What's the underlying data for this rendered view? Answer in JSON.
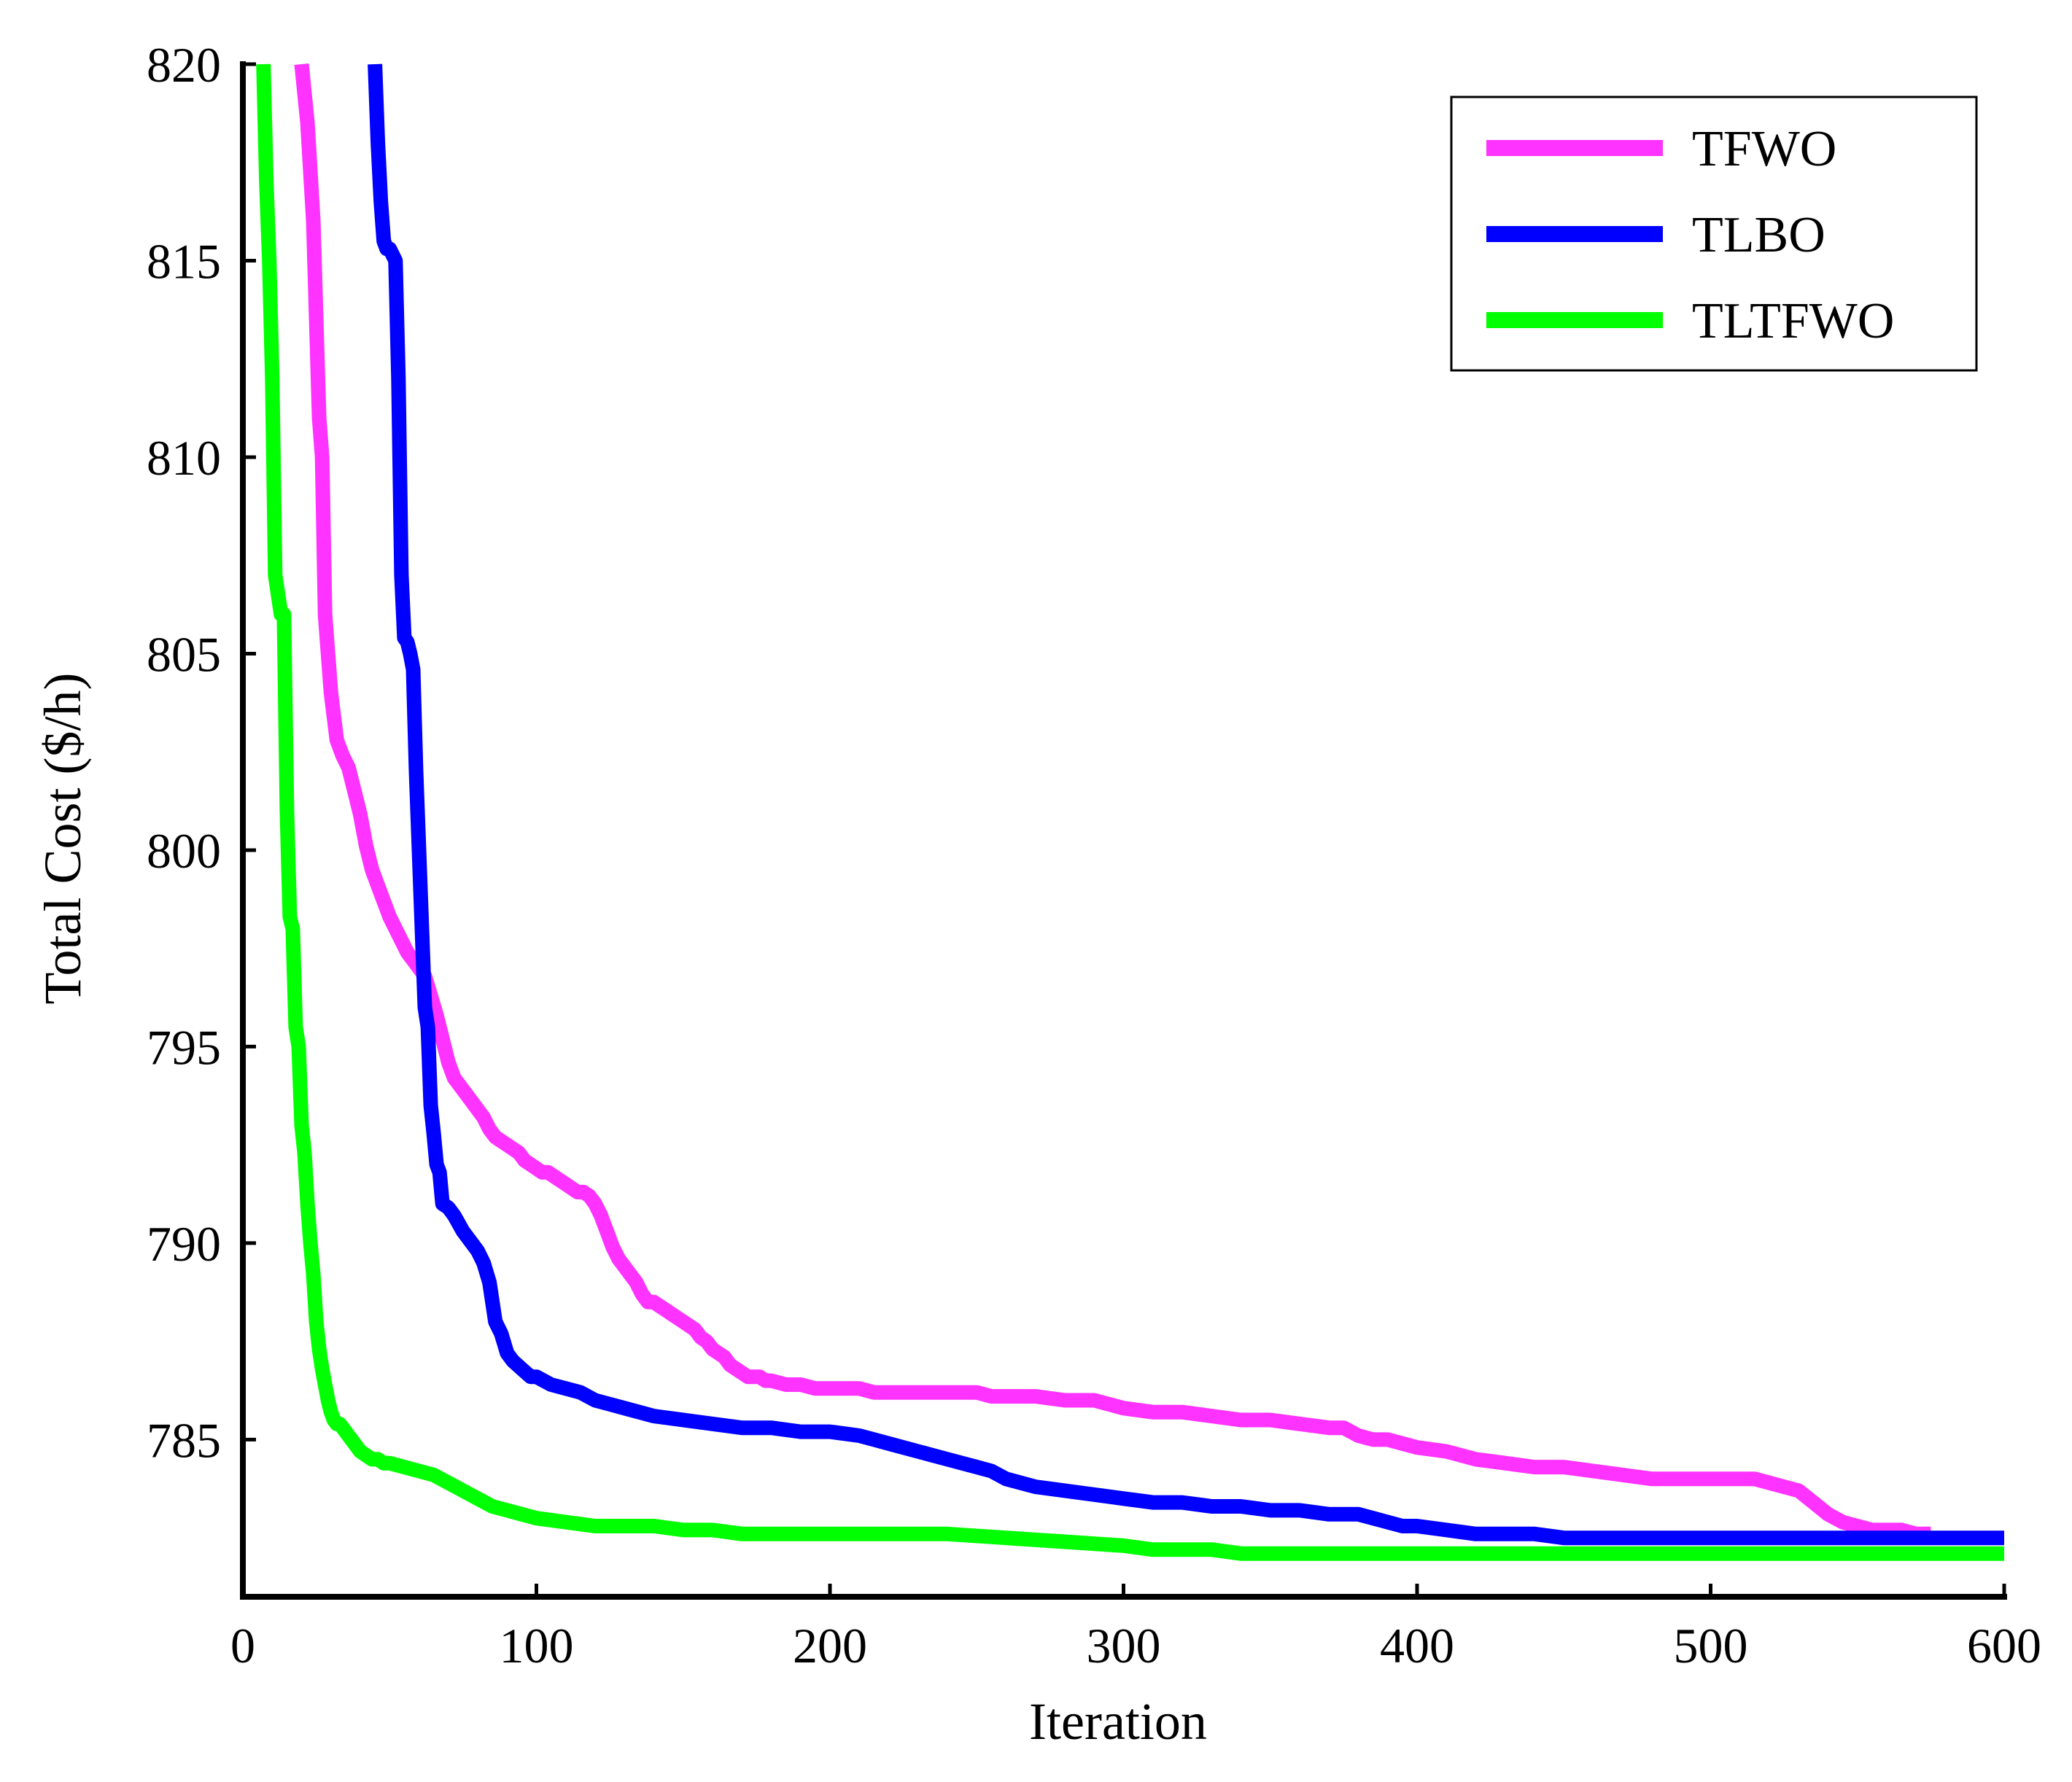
{
  "chart_data": {
    "type": "line",
    "title": "",
    "xlabel": "Iteration",
    "ylabel": "Total Cost ($/h)",
    "xlim": [
      0,
      600
    ],
    "ylim": [
      781,
      820
    ],
    "xticks": [
      "0",
      "100",
      "200",
      "300",
      "400",
      "500",
      "600"
    ],
    "yticks": [
      "785",
      "790",
      "795",
      "800",
      "805",
      "810",
      "815",
      "820"
    ],
    "grid": false,
    "legend_position": "top-right",
    "series": [
      {
        "name": "TFWO",
        "color": "#ff33ff",
        "x": [
          20,
          22,
          24,
          26,
          27,
          28,
          30,
          32,
          34,
          36,
          38,
          40,
          42,
          44,
          46,
          48,
          50,
          52,
          54,
          56,
          58,
          60,
          62,
          64,
          66,
          68,
          70,
          72,
          74,
          76,
          78,
          80,
          82,
          84,
          86,
          88,
          90,
          92,
          94,
          96,
          98,
          100,
          102,
          104,
          106,
          108,
          110,
          112,
          114,
          116,
          118,
          120,
          122,
          124,
          126,
          128,
          130,
          132,
          134,
          136,
          138,
          140,
          142,
          144,
          146,
          148,
          150,
          152,
          154,
          156,
          158,
          160,
          162,
          164,
          166,
          168,
          170,
          172,
          174,
          176,
          178,
          180,
          185,
          190,
          195,
          200,
          210,
          215,
          220,
          230,
          240,
          250,
          255,
          260,
          270,
          280,
          290,
          295,
          300,
          310,
          320,
          330,
          340,
          350,
          360,
          370,
          375,
          380,
          385,
          390,
          395,
          400,
          410,
          420,
          430,
          440,
          450,
          460,
          470,
          480,
          490,
          500,
          505,
          510,
          515,
          520,
          525,
          530,
          535,
          540,
          545,
          550,
          555,
          560,
          565,
          570,
          575
        ],
        "y": [
          820,
          818.5,
          816,
          811,
          810,
          806,
          804,
          802.8,
          802.4,
          802.1,
          801.5,
          800.9,
          800.1,
          799.5,
          799.1,
          798.7,
          798.3,
          798,
          797.7,
          797.4,
          797.2,
          797,
          796.8,
          796.3,
          795.8,
          795.2,
          794.6,
          794.2,
          794,
          793.8,
          793.6,
          793.4,
          793.2,
          792.9,
          792.7,
          792.6,
          792.5,
          792.4,
          792.3,
          792.1,
          792,
          791.9,
          791.8,
          791.8,
          791.7,
          791.6,
          791.5,
          791.4,
          791.3,
          791.3,
          791.2,
          791,
          790.7,
          790.3,
          789.9,
          789.6,
          789.4,
          789.2,
          789,
          788.7,
          788.5,
          788.5,
          788.4,
          788.3,
          788.2,
          788.1,
          788,
          787.9,
          787.8,
          787.6,
          787.5,
          787.3,
          787.2,
          787.1,
          786.9,
          786.8,
          786.7,
          786.6,
          786.6,
          786.6,
          786.5,
          786.5,
          786.4,
          786.4,
          786.3,
          786.3,
          786.3,
          786.2,
          786.2,
          786.2,
          786.2,
          786.2,
          786.1,
          786.1,
          786.1,
          786,
          786,
          785.9,
          785.8,
          785.7,
          785.7,
          785.6,
          785.5,
          785.5,
          785.4,
          785.3,
          785.3,
          785.1,
          785,
          785,
          784.9,
          784.8,
          784.7,
          784.5,
          784.4,
          784.3,
          784.3,
          784.2,
          784.1,
          784,
          784,
          784,
          784,
          784,
          784,
          783.9,
          783.8,
          783.7,
          783.4,
          783.1,
          782.9,
          782.8,
          782.7,
          782.7,
          782.7,
          782.6,
          782.6
        ]
      },
      {
        "name": "TLBO",
        "color": "#0000ff",
        "x": [
          45,
          46,
          47,
          48,
          49,
          50,
          52,
          53,
          54,
          55,
          56,
          57,
          58,
          59,
          60,
          61,
          62,
          63,
          64,
          65,
          66,
          67,
          68,
          70,
          72,
          75,
          78,
          80,
          82,
          84,
          86,
          88,
          90,
          92,
          95,
          98,
          100,
          105,
          110,
          115,
          120,
          125,
          130,
          140,
          150,
          160,
          170,
          180,
          190,
          200,
          210,
          215,
          220,
          230,
          240,
          250,
          255,
          260,
          270,
          280,
          290,
          300,
          310,
          320,
          330,
          340,
          350,
          360,
          370,
          375,
          380,
          385,
          390,
          395,
          400,
          410,
          420,
          430,
          440,
          450,
          460,
          480,
          500,
          520,
          540,
          560,
          580,
          600
        ],
        "y": [
          820,
          818,
          816.5,
          815.5,
          815.3,
          815.3,
          815,
          812,
          807,
          805.4,
          805.3,
          805,
          804.6,
          802,
          800,
          798,
          796,
          795.5,
          793.5,
          792.8,
          792,
          791.8,
          791,
          790.9,
          790.7,
          790.3,
          790,
          789.8,
          789.5,
          789,
          788,
          787.7,
          787.2,
          787,
          786.8,
          786.6,
          786.6,
          786.4,
          786.3,
          786.2,
          786,
          785.9,
          785.8,
          785.6,
          785.5,
          785.4,
          785.3,
          785.3,
          785.2,
          785.2,
          785.1,
          785,
          784.9,
          784.7,
          784.5,
          784.3,
          784.2,
          784,
          783.8,
          783.7,
          783.6,
          783.5,
          783.4,
          783.4,
          783.3,
          783.3,
          783.2,
          783.2,
          783.1,
          783.1,
          783.1,
          783,
          782.9,
          782.8,
          782.8,
          782.7,
          782.6,
          782.6,
          782.6,
          782.5,
          782.5,
          782.5,
          782.5,
          782.5,
          782.5,
          782.5,
          782.5,
          782.5
        ]
      },
      {
        "name": "TLTFWO",
        "color": "#00ff00",
        "x": [
          7,
          8,
          9,
          10,
          11,
          12,
          13,
          14,
          15,
          16,
          17,
          18,
          19,
          20,
          21,
          22,
          23,
          24,
          25,
          26,
          27,
          28,
          29,
          30,
          31,
          32,
          33,
          34,
          35,
          36,
          38,
          40,
          42,
          44,
          46,
          48,
          50,
          55,
          60,
          65,
          70,
          75,
          80,
          85,
          90,
          95,
          100,
          110,
          120,
          130,
          140,
          150,
          160,
          170,
          180,
          190,
          200,
          220,
          240,
          260,
          280,
          300,
          310,
          320,
          330,
          340,
          350,
          380,
          400,
          450,
          500,
          550,
          600
        ],
        "y": [
          820,
          817,
          815,
          812,
          807,
          806.5,
          806,
          806,
          801,
          798.3,
          798,
          795.5,
          795,
          793,
          792.3,
          791,
          790,
          789.2,
          788,
          787.3,
          786.8,
          786.4,
          786,
          785.7,
          785.5,
          785.4,
          785.4,
          785.3,
          785.2,
          785.1,
          784.9,
          784.7,
          784.6,
          784.5,
          784.5,
          784.4,
          784.4,
          784.3,
          784.2,
          784.1,
          783.9,
          783.7,
          783.5,
          783.3,
          783.2,
          783.1,
          783,
          782.9,
          782.8,
          782.8,
          782.8,
          782.7,
          782.7,
          782.6,
          782.6,
          782.6,
          782.6,
          782.6,
          782.6,
          782.5,
          782.4,
          782.3,
          782.2,
          782.2,
          782.2,
          782.1,
          782.1,
          782.1,
          782.1,
          782.1,
          782.1,
          782.1,
          782.1
        ]
      }
    ]
  }
}
